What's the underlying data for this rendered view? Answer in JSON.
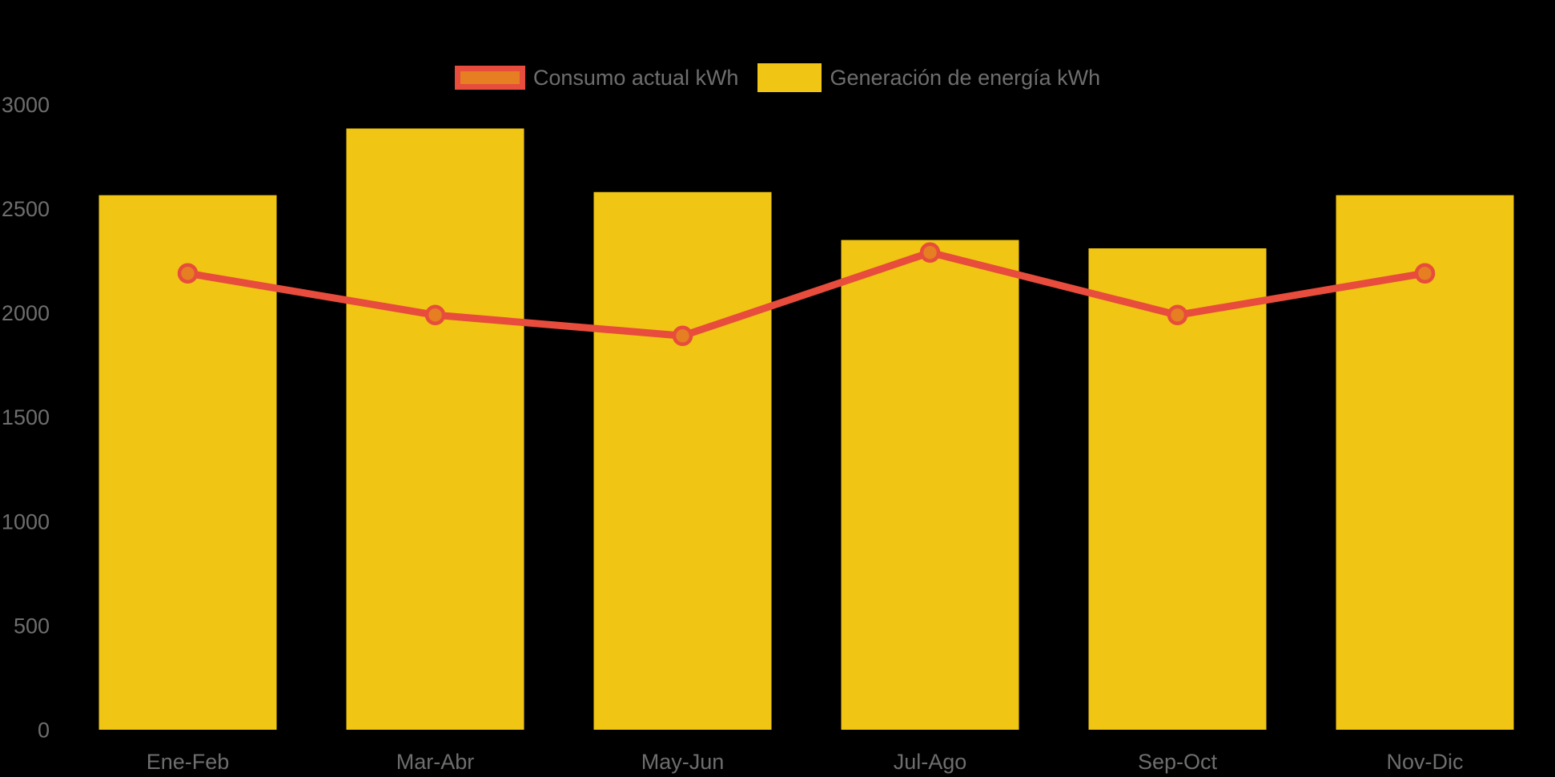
{
  "page": {
    "background": "#000000",
    "axis_text_color": "#6E6E6E"
  },
  "legend": {
    "items": [
      {
        "label": "Consumo actual kWh",
        "type": "line",
        "fill": "#E67E22",
        "border": "#E74C3C"
      },
      {
        "label": "Generación de energía kWh",
        "type": "bar",
        "fill": "#F0C514"
      }
    ]
  },
  "chart_data": {
    "type": "bar+line",
    "title": "",
    "xlabel": "",
    "ylabel": "",
    "categories": [
      "Ene-Feb",
      "Mar-Abr",
      "May-Jun",
      "Jul-Ago",
      "Sep-Oct",
      "Nov-Dic"
    ],
    "series": [
      {
        "name": "Generación de energía kWh",
        "type": "bar",
        "color": "#F0C514",
        "values": [
          2565,
          2885,
          2580,
          2350,
          2310,
          2565
        ]
      },
      {
        "name": "Consumo actual kWh",
        "type": "line",
        "color": "#E74C3C",
        "marker_fill": "#E67E22",
        "values": [
          2190,
          1990,
          1890,
          2290,
          1990,
          2190
        ]
      }
    ],
    "yticks": [
      0,
      500,
      1000,
      1500,
      2000,
      2500,
      3000
    ],
    "ylim": [
      0,
      3000
    ],
    "grid": false,
    "legend_position": "top-center"
  }
}
